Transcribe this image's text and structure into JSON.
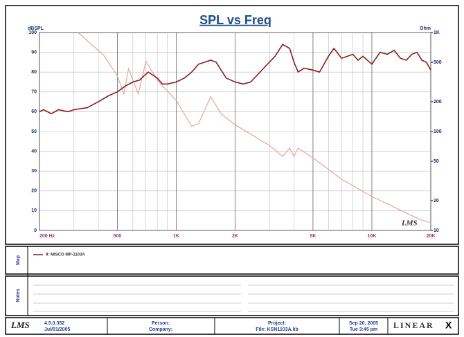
{
  "chart_data": {
    "type": "line",
    "title": "SPL vs Freq",
    "ylabel": "dBSPL",
    "y2label": "Ohm",
    "watermark": "LMS",
    "xscale": "log",
    "y2scale": "log",
    "grid": true,
    "xlim": [
      200,
      20000
    ],
    "xticks": [
      {
        "value": 200,
        "label": "200 Hz"
      },
      500,
      {
        "value": 1000,
        "label": "1K"
      },
      {
        "value": 2000,
        "label": "2K"
      },
      {
        "value": 5000,
        "label": "5K"
      },
      {
        "value": 10000,
        "label": "10K"
      },
      {
        "value": 20000,
        "label": "20K"
      }
    ],
    "xminor_ticks": [
      300,
      400,
      600,
      700,
      800,
      900,
      3000,
      4000,
      6000,
      7000,
      8000,
      9000
    ],
    "ylim": [
      0,
      100
    ],
    "yticks": [
      0,
      10,
      20,
      30,
      40,
      50,
      60,
      70,
      80,
      90,
      100
    ],
    "y2lim": [
      10,
      1000
    ],
    "y2ticks": [
      10,
      20,
      50,
      100,
      200,
      500,
      {
        "value": 1000,
        "label": "1K"
      }
    ],
    "series": [
      {
        "name": "9: MISCO MP-1103A",
        "color": "#8b1a1a",
        "x": [
          200,
          210,
          230,
          250,
          280,
          300,
          350,
          400,
          450,
          500,
          550,
          600,
          650,
          700,
          720,
          800,
          850,
          900,
          1000,
          1100,
          1200,
          1300,
          1500,
          1600,
          1800,
          2000,
          2200,
          2400,
          2800,
          3200,
          3500,
          3800,
          4000,
          4200,
          4500,
          5000,
          5400,
          6000,
          6400,
          7000,
          7500,
          8000,
          8500,
          9000,
          10000,
          11000,
          12000,
          13000,
          14000,
          15000,
          16000,
          17000,
          18000,
          19000,
          20000
        ],
        "values": [
          60,
          61,
          59,
          61,
          60,
          61,
          62,
          65,
          68,
          70,
          73,
          75,
          76,
          79,
          80,
          77,
          74,
          74,
          75,
          77,
          80,
          84,
          86,
          85,
          77,
          75,
          74,
          75,
          82,
          88,
          94,
          92,
          85,
          80,
          82,
          81,
          80,
          88,
          92,
          87,
          88,
          89,
          86,
          88,
          84,
          90,
          89,
          91,
          87,
          86,
          89,
          90,
          86,
          85,
          81
        ]
      },
      {
        "color": "#e0a8a0",
        "axis": "y2",
        "x": [
          315,
          426,
          500,
          540,
          570,
          640,
          700,
          800,
          1000,
          1200,
          1300,
          1500,
          1700,
          2000,
          3000,
          3500,
          3800,
          4000,
          4200,
          5000,
          7000,
          10000,
          15000,
          18000,
          20000
        ],
        "values": [
          1000,
          589,
          363,
          240,
          430,
          240,
          513,
          330,
          206,
          113,
          120,
          224,
          150,
          117,
          72,
          56,
          68,
          56,
          68,
          54,
          33,
          22,
          15,
          12.7,
          12
        ]
      }
    ]
  },
  "panels": {
    "map": "Map",
    "notes": "Notes"
  },
  "footer": {
    "logo": "LMS",
    "version": "4.5.0.352",
    "version_date": "Jul/01/2005",
    "person": "Person:",
    "company": "Company:",
    "project": "Project:",
    "file": "File: KSN1103A.lib",
    "date": "Sep 20, 2005",
    "time": "Tue  3:45 pm",
    "brand": "LINEAR",
    "brand_mark": "X"
  }
}
